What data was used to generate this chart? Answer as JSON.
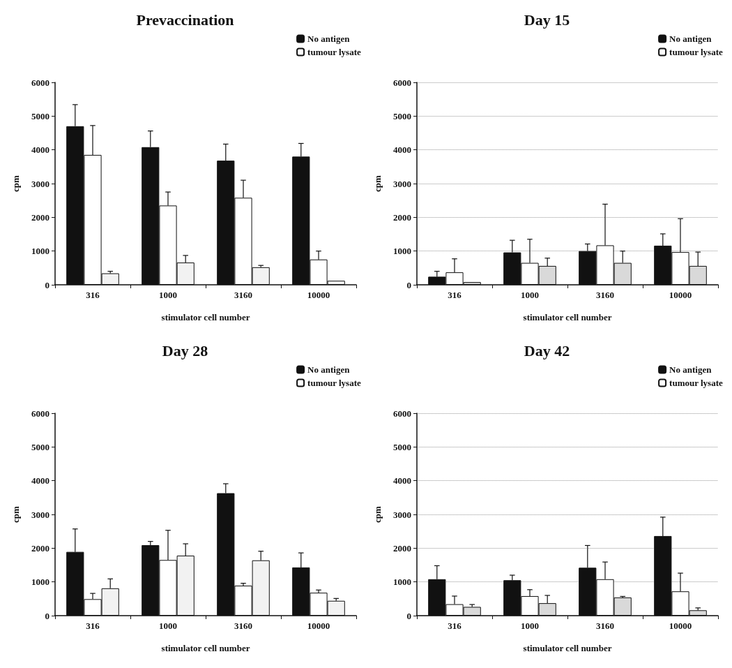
{
  "chart_data": [
    {
      "type": "bar",
      "title": "Prevaccination",
      "xlabel": "stimulator cell number",
      "ylabel": "cpm",
      "categories": [
        "316",
        "1000",
        "3160",
        "10000"
      ],
      "ylim": [
        0,
        6000
      ],
      "yticks": [
        0,
        1000,
        2000,
        3000,
        4000,
        5000,
        6000
      ],
      "grid": false,
      "legend": "top right",
      "series": [
        {
          "name": "No antigen",
          "color": "#111111",
          "values": [
            4700,
            4080,
            3680,
            3800
          ],
          "errors": [
            [
              4700,
              5340
            ],
            [
              4080,
              4560
            ],
            [
              3680,
              4170
            ],
            [
              3800,
              4190
            ]
          ]
        },
        {
          "name": "tumour lysate",
          "color": "#ffffff",
          "values": [
            3850,
            2350,
            2580,
            750
          ],
          "errors": [
            [
              3850,
              4720
            ],
            [
              2350,
              2750
            ],
            [
              2580,
              3100
            ],
            [
              750,
              1000
            ]
          ]
        },
        {
          "color": "#f2f2f2",
          "values": [
            340,
            660,
            520,
            120
          ],
          "errors": [
            [
              340,
              400
            ],
            [
              660,
              870
            ],
            [
              520,
              575
            ],
            null
          ]
        }
      ]
    },
    {
      "type": "bar",
      "title": "Day 15",
      "xlabel": "stimulator cell number",
      "ylabel": "cpm",
      "categories": [
        "316",
        "1000",
        "3160",
        "10000"
      ],
      "ylim": [
        0,
        6000
      ],
      "yticks": [
        0,
        1000,
        2000,
        3000,
        4000,
        5000,
        6000
      ],
      "grid": "y",
      "legend": "top right",
      "series": [
        {
          "name": "No antigen",
          "color": "#111111",
          "values": [
            240,
            960,
            1000,
            1160
          ],
          "errors": [
            [
              240,
              400
            ],
            [
              960,
              1320
            ],
            [
              1000,
              1210
            ],
            [
              1160,
              1510
            ]
          ]
        },
        {
          "name": "tumour lysate",
          "color": "#ffffff",
          "values": [
            370,
            650,
            1170,
            970
          ],
          "errors": [
            [
              370,
              770
            ],
            [
              650,
              1350
            ],
            [
              1170,
              2390
            ],
            [
              970,
              1960
            ]
          ]
        },
        {
          "color": "#d9d9d9",
          "values": [
            80,
            560,
            650,
            560
          ],
          "errors": [
            null,
            [
              560,
              790
            ],
            [
              650,
              1000
            ],
            [
              560,
              970
            ]
          ]
        }
      ]
    },
    {
      "type": "bar",
      "title": "Day 28",
      "xlabel": "stimulator cell number",
      "ylabel": "cpm",
      "categories": [
        "316",
        "1000",
        "3160",
        "10000"
      ],
      "ylim": [
        0,
        6000
      ],
      "yticks": [
        0,
        1000,
        2000,
        3000,
        4000,
        5000,
        6000
      ],
      "grid": false,
      "legend": "top right",
      "series": [
        {
          "name": "No antigen",
          "color": "#111111",
          "values": [
            1890,
            2090,
            3630,
            1430
          ],
          "errors": [
            [
              1890,
              2570
            ],
            [
              2090,
              2200
            ],
            [
              3630,
              3910
            ],
            [
              1430,
              1860
            ]
          ]
        },
        {
          "name": "tumour lysate",
          "color": "#ffffff",
          "values": [
            490,
            1650,
            890,
            680
          ],
          "errors": [
            [
              490,
              660
            ],
            [
              1650,
              2530
            ],
            [
              890,
              960
            ],
            [
              680,
              760
            ]
          ]
        },
        {
          "color": "#f2f2f2",
          "values": [
            810,
            1780,
            1640,
            440
          ],
          "errors": [
            [
              810,
              1090
            ],
            [
              1780,
              2130
            ],
            [
              1640,
              1910
            ],
            [
              440,
              510
            ]
          ]
        }
      ]
    },
    {
      "type": "bar",
      "title": "Day 42",
      "xlabel": "stimulator cell number",
      "ylabel": "cpm",
      "categories": [
        "316",
        "1000",
        "3160",
        "10000"
      ],
      "ylim": [
        0,
        6000
      ],
      "yticks": [
        0,
        1000,
        2000,
        3000,
        4000,
        5000,
        6000
      ],
      "grid": "y",
      "legend": "top right",
      "series": [
        {
          "name": "No antigen",
          "color": "#111111",
          "values": [
            1080,
            1050,
            1420,
            2360
          ],
          "errors": [
            [
              1080,
              1480
            ],
            [
              1050,
              1200
            ],
            [
              1420,
              2080
            ],
            [
              2360,
              2920
            ]
          ]
        },
        {
          "name": "tumour lysate",
          "color": "#ffffff",
          "values": [
            340,
            580,
            1080,
            720
          ],
          "errors": [
            [
              340,
              580
            ],
            [
              580,
              770
            ],
            [
              1080,
              1590
            ],
            [
              720,
              1260
            ]
          ]
        },
        {
          "color": "#d9d9d9",
          "values": [
            260,
            370,
            540,
            160
          ],
          "errors": [
            [
              260,
              330
            ],
            [
              370,
              600
            ],
            [
              540,
              570
            ],
            [
              160,
              230
            ]
          ]
        }
      ]
    }
  ]
}
